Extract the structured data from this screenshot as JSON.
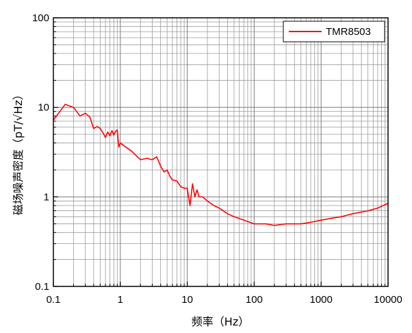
{
  "chart_data": {
    "type": "line",
    "title": "",
    "xlabel": "频率（Hz）",
    "ylabel": "磁场噪声密度（pT/√Hz）",
    "x_scale": "log",
    "y_scale": "log",
    "xlim": [
      0.1,
      10000
    ],
    "ylim": [
      0.1,
      100
    ],
    "x_tick_labels": [
      "0.1",
      "1",
      "10",
      "100",
      "1000",
      "10000"
    ],
    "y_tick_labels": [
      "0.1",
      "1",
      "10",
      "100"
    ],
    "grid": true,
    "legend_position": "top-right",
    "series": [
      {
        "name": "TMR8503",
        "color": "#ff0000",
        "x": [
          0.1,
          0.15,
          0.2,
          0.25,
          0.3,
          0.35,
          0.4,
          0.45,
          0.5,
          0.55,
          0.6,
          0.65,
          0.7,
          0.75,
          0.8,
          0.85,
          0.9,
          0.95,
          1.0,
          1.5,
          2.0,
          2.5,
          3.0,
          3.5,
          4.0,
          4.5,
          5.0,
          5.5,
          6.0,
          7.0,
          8.0,
          9.0,
          10.0,
          11,
          12,
          13,
          14,
          15,
          17,
          20,
          25,
          30,
          40,
          50,
          70,
          100,
          150,
          200,
          300,
          500,
          700,
          1000,
          1500,
          2000,
          3000,
          5000,
          7000,
          10000
        ],
        "y": [
          7.2,
          10.8,
          10.0,
          8.0,
          8.6,
          7.8,
          5.8,
          6.1,
          5.8,
          5.2,
          4.6,
          5.3,
          4.8,
          5.5,
          4.9,
          5.4,
          5.6,
          3.6,
          4.0,
          3.2,
          2.6,
          2.7,
          2.6,
          2.8,
          2.2,
          1.9,
          2.0,
          1.7,
          1.55,
          1.5,
          1.3,
          1.25,
          1.25,
          0.8,
          1.4,
          1.0,
          1.2,
          1.0,
          1.0,
          0.9,
          0.8,
          0.75,
          0.65,
          0.6,
          0.55,
          0.5,
          0.5,
          0.48,
          0.5,
          0.5,
          0.52,
          0.55,
          0.58,
          0.6,
          0.65,
          0.7,
          0.75,
          0.85
        ]
      }
    ]
  }
}
